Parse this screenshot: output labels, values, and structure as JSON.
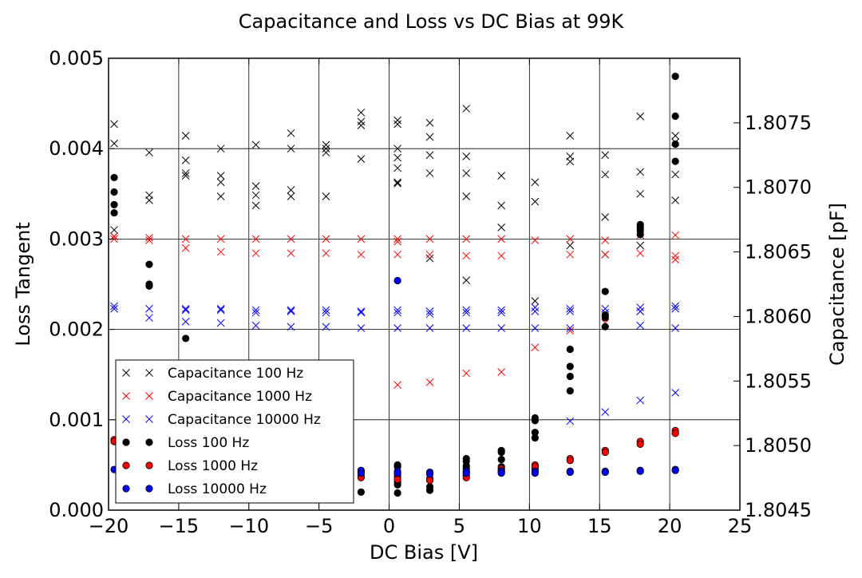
{
  "chart_data": {
    "type": "scatter",
    "title": "Capacitance and Loss vs DC Bias at 99K",
    "xlabel": "DC Bias [V]",
    "ylabel_left": "Loss Tangent",
    "ylabel_right": "Capacitance [pF]",
    "xlim": [
      -20,
      25
    ],
    "ylim_left": [
      0.0,
      0.005
    ],
    "ylim_right": [
      1.8045,
      1.808
    ],
    "x_ticks": [
      "−20",
      "−15",
      "−10",
      "−5",
      "0",
      "5",
      "10",
      "15",
      "20",
      "25"
    ],
    "x_tick_values": [
      -20,
      -15,
      -10,
      -5,
      0,
      5,
      10,
      15,
      20,
      25
    ],
    "y_left_ticks": [
      "0.000",
      "0.001",
      "0.002",
      "0.003",
      "0.004",
      "0.005"
    ],
    "y_left_tick_values": [
      0,
      0.001,
      0.002,
      0.003,
      0.004,
      0.005
    ],
    "y_right_ticks": [
      "1.8045",
      "1.8050",
      "1.8055",
      "1.8060",
      "1.8065",
      "1.8070",
      "1.8075"
    ],
    "y_right_tick_values": [
      1.8045,
      1.805,
      1.8055,
      1.806,
      1.8065,
      1.807,
      1.8075
    ],
    "grid": true,
    "legend_position": "lower-left",
    "legend": [
      {
        "label": "Capacitance 100 Hz",
        "marker": "x",
        "color": "#000000"
      },
      {
        "label": "Capacitance 1000 Hz",
        "marker": "x",
        "color": "#ff0000"
      },
      {
        "label": "Capacitance 10000 Hz",
        "marker": "x",
        "color": "#0000ff"
      },
      {
        "label": "Loss 100 Hz",
        "marker": "o",
        "color": "#000000"
      },
      {
        "label": "Loss 1000 Hz",
        "marker": "o",
        "color": "#ff0000"
      },
      {
        "label": "Loss 10000 Hz",
        "marker": "o",
        "color": "#0000ff"
      }
    ],
    "series": [
      {
        "name": "Capacitance 100 Hz",
        "axis": "right",
        "marker": "x",
        "color": "#000000",
        "points": [
          [
            -19.6,
            1.80749
          ],
          [
            -19.6,
            1.80734
          ],
          [
            -19.6,
            1.80667
          ],
          [
            -19.6,
            1.80662
          ],
          [
            -17.1,
            1.80727
          ],
          [
            -17.1,
            1.80694
          ],
          [
            -17.1,
            1.8069
          ],
          [
            -14.5,
            1.8074
          ],
          [
            -14.5,
            1.80721
          ],
          [
            -14.5,
            1.80711
          ],
          [
            -14.5,
            1.80709
          ],
          [
            -12.0,
            1.8073
          ],
          [
            -12.0,
            1.80709
          ],
          [
            -12.0,
            1.80704
          ],
          [
            -12.0,
            1.80693
          ],
          [
            -9.5,
            1.80733
          ],
          [
            -9.5,
            1.80701
          ],
          [
            -9.5,
            1.80694
          ],
          [
            -9.5,
            1.80686
          ],
          [
            -7.0,
            1.80742
          ],
          [
            -7.0,
            1.8073
          ],
          [
            -7.0,
            1.80698
          ],
          [
            -7.0,
            1.80693
          ],
          [
            -4.5,
            1.80733
          ],
          [
            -4.5,
            1.8073
          ],
          [
            -4.5,
            1.80727
          ],
          [
            -4.5,
            1.80693
          ],
          [
            -2.0,
            1.80758
          ],
          [
            -2.0,
            1.80751
          ],
          [
            -2.0,
            1.80748
          ],
          [
            -2.0,
            1.80722
          ],
          [
            0.6,
            1.80752
          ],
          [
            0.6,
            1.80749
          ],
          [
            0.6,
            1.8073
          ],
          [
            0.6,
            1.80723
          ],
          [
            0.6,
            1.80715
          ],
          [
            0.6,
            1.80704
          ],
          [
            0.6,
            1.80703
          ],
          [
            2.9,
            1.8075
          ],
          [
            2.9,
            1.80739
          ],
          [
            2.9,
            1.80725
          ],
          [
            2.9,
            1.80711
          ],
          [
            2.9,
            1.80645
          ],
          [
            5.5,
            1.80761
          ],
          [
            5.5,
            1.80724
          ],
          [
            5.5,
            1.80711
          ],
          [
            5.5,
            1.80693
          ],
          [
            5.5,
            1.80628
          ],
          [
            8.0,
            1.80709
          ],
          [
            8.0,
            1.80686
          ],
          [
            8.0,
            1.80669
          ],
          [
            10.4,
            1.80704
          ],
          [
            10.4,
            1.80689
          ],
          [
            10.4,
            1.80612
          ],
          [
            12.9,
            1.8074
          ],
          [
            12.9,
            1.80724
          ],
          [
            12.9,
            1.8072
          ],
          [
            12.9,
            1.80655
          ],
          [
            15.4,
            1.80725
          ],
          [
            15.4,
            1.8071
          ],
          [
            15.4,
            1.80677
          ],
          [
            15.4,
            1.80648
          ],
          [
            17.9,
            1.80755
          ],
          [
            17.9,
            1.80712
          ],
          [
            17.9,
            1.80695
          ],
          [
            17.9,
            1.80655
          ],
          [
            20.4,
            1.80735
          ],
          [
            20.4,
            1.8074
          ],
          [
            20.4,
            1.8071
          ],
          [
            20.4,
            1.8069
          ]
        ]
      },
      {
        "name": "Capacitance 1000 Hz",
        "axis": "right",
        "marker": "x",
        "color": "#ff0000",
        "points": [
          [
            -19.6,
            1.80662
          ],
          [
            -19.6,
            1.8066
          ],
          [
            -17.1,
            1.80661
          ],
          [
            -17.1,
            1.80659
          ],
          [
            -14.5,
            1.8066
          ],
          [
            -14.5,
            1.80653
          ],
          [
            -12.0,
            1.8066
          ],
          [
            -12.0,
            1.8065
          ],
          [
            -9.5,
            1.8066
          ],
          [
            -9.5,
            1.80649
          ],
          [
            -7.0,
            1.8066
          ],
          [
            -7.0,
            1.80649
          ],
          [
            -4.5,
            1.8066
          ],
          [
            -4.5,
            1.80649
          ],
          [
            -2.0,
            1.8066
          ],
          [
            -2.0,
            1.80648
          ],
          [
            0.6,
            1.8066
          ],
          [
            0.6,
            1.80658
          ],
          [
            0.6,
            1.80648
          ],
          [
            0.6,
            1.80547
          ],
          [
            2.9,
            1.8066
          ],
          [
            2.9,
            1.80648
          ],
          [
            2.9,
            1.80549
          ],
          [
            5.5,
            1.8066
          ],
          [
            5.5,
            1.80647
          ],
          [
            5.5,
            1.80556
          ],
          [
            8.0,
            1.8066
          ],
          [
            8.0,
            1.80647
          ],
          [
            8.0,
            1.80557
          ],
          [
            10.4,
            1.80659
          ],
          [
            10.4,
            1.80576
          ],
          [
            12.9,
            1.8066
          ],
          [
            12.9,
            1.80648
          ],
          [
            12.9,
            1.80589
          ],
          [
            15.4,
            1.80659
          ],
          [
            15.4,
            1.80648
          ],
          [
            15.4,
            1.80595
          ],
          [
            17.9,
            1.80663
          ],
          [
            17.9,
            1.80649
          ],
          [
            17.9,
            1.80604
          ],
          [
            20.4,
            1.80663
          ],
          [
            20.4,
            1.80647
          ],
          [
            20.4,
            1.80644
          ]
        ]
      },
      {
        "name": "Capacitance 10000 Hz",
        "axis": "right",
        "marker": "x",
        "color": "#0000ff",
        "points": [
          [
            -19.6,
            1.80608
          ],
          [
            -19.6,
            1.80606
          ],
          [
            -17.1,
            1.80606
          ],
          [
            -17.1,
            1.80599
          ],
          [
            -14.5,
            1.80606
          ],
          [
            -14.5,
            1.80605
          ],
          [
            -14.5,
            1.80596
          ],
          [
            -12.0,
            1.80606
          ],
          [
            -12.0,
            1.80605
          ],
          [
            -12.0,
            1.80595
          ],
          [
            -9.5,
            1.80605
          ],
          [
            -9.5,
            1.80603
          ],
          [
            -9.5,
            1.80593
          ],
          [
            -7.0,
            1.80605
          ],
          [
            -7.0,
            1.80604
          ],
          [
            -7.0,
            1.80592
          ],
          [
            -4.5,
            1.80605
          ],
          [
            -4.5,
            1.80603
          ],
          [
            -4.5,
            1.80592
          ],
          [
            -2.0,
            1.80604
          ],
          [
            -2.0,
            1.80603
          ],
          [
            -2.0,
            1.80591
          ],
          [
            0.6,
            1.80605
          ],
          [
            0.6,
            1.80603
          ],
          [
            0.6,
            1.80591
          ],
          [
            2.9,
            1.80604
          ],
          [
            2.9,
            1.80602
          ],
          [
            2.9,
            1.80591
          ],
          [
            5.5,
            1.80605
          ],
          [
            5.5,
            1.80603
          ],
          [
            5.5,
            1.80591
          ],
          [
            8.0,
            1.80605
          ],
          [
            8.0,
            1.80603
          ],
          [
            8.0,
            1.80591
          ],
          [
            10.4,
            1.80607
          ],
          [
            10.4,
            1.80604
          ],
          [
            10.4,
            1.80591
          ],
          [
            12.9,
            1.80606
          ],
          [
            12.9,
            1.80604
          ],
          [
            12.9,
            1.80591
          ],
          [
            12.9,
            1.80519
          ],
          [
            15.4,
            1.80606
          ],
          [
            15.4,
            1.80603
          ],
          [
            15.4,
            1.80526
          ],
          [
            17.9,
            1.80607
          ],
          [
            17.9,
            1.80604
          ],
          [
            17.9,
            1.80593
          ],
          [
            17.9,
            1.80535
          ],
          [
            20.4,
            1.80608
          ],
          [
            20.4,
            1.80606
          ],
          [
            20.4,
            1.80591
          ],
          [
            20.4,
            1.80541
          ]
        ]
      },
      {
        "name": "Loss 100 Hz",
        "axis": "left",
        "marker": "o",
        "color": "#000000",
        "points": [
          [
            -19.6,
            0.00368
          ],
          [
            -19.6,
            0.00352
          ],
          [
            -19.6,
            0.00338
          ],
          [
            -19.6,
            0.00329
          ],
          [
            -17.1,
            0.00272
          ],
          [
            -17.1,
            0.0025
          ],
          [
            -17.1,
            0.00248
          ],
          [
            -14.5,
            0.0019
          ],
          [
            -2.0,
            0.00043
          ],
          [
            -2.0,
            0.0002
          ],
          [
            0.6,
            0.0005
          ],
          [
            0.6,
            0.00048
          ],
          [
            0.6,
            0.0004
          ],
          [
            0.6,
            0.00031
          ],
          [
            0.6,
            0.00028
          ],
          [
            0.6,
            0.00019
          ],
          [
            2.9,
            0.0004
          ],
          [
            2.9,
            0.00034
          ],
          [
            2.9,
            0.00026
          ],
          [
            2.9,
            0.00022
          ],
          [
            5.5,
            0.00057
          ],
          [
            5.5,
            0.00054
          ],
          [
            5.5,
            0.00049
          ],
          [
            5.5,
            0.00046
          ],
          [
            5.5,
            0.00042
          ],
          [
            8.0,
            0.00066
          ],
          [
            8.0,
            0.00064
          ],
          [
            8.0,
            0.00056
          ],
          [
            8.0,
            0.00048
          ],
          [
            8.0,
            0.00042
          ],
          [
            10.4,
            0.00102
          ],
          [
            10.4,
            0.00099
          ],
          [
            10.4,
            0.00086
          ],
          [
            10.4,
            0.0008
          ],
          [
            10.4,
            0.00046
          ],
          [
            12.9,
            0.00178
          ],
          [
            12.9,
            0.00159
          ],
          [
            12.9,
            0.00148
          ],
          [
            12.9,
            0.00132
          ],
          [
            15.4,
            0.00242
          ],
          [
            15.4,
            0.00216
          ],
          [
            15.4,
            0.00213
          ],
          [
            15.4,
            0.00203
          ],
          [
            17.9,
            0.00316
          ],
          [
            17.9,
            0.00313
          ],
          [
            17.9,
            0.0031
          ],
          [
            17.9,
            0.00305
          ],
          [
            20.4,
            0.0048
          ],
          [
            20.4,
            0.00436
          ],
          [
            20.4,
            0.00405
          ],
          [
            20.4,
            0.00386
          ]
        ]
      },
      {
        "name": "Loss 1000 Hz",
        "axis": "left",
        "marker": "o",
        "color": "#ff0000",
        "points": [
          [
            -19.6,
            0.00078
          ],
          [
            -19.6,
            0.00076
          ],
          [
            -2.0,
            0.00038
          ],
          [
            -2.0,
            0.00036
          ],
          [
            0.6,
            0.00037
          ],
          [
            0.6,
            0.00034
          ],
          [
            2.9,
            0.00035
          ],
          [
            2.9,
            0.00033
          ],
          [
            5.5,
            0.00039
          ],
          [
            5.5,
            0.00036
          ],
          [
            8.0,
            0.00046
          ],
          [
            8.0,
            0.00044
          ],
          [
            10.4,
            0.0005
          ],
          [
            10.4,
            0.00048
          ],
          [
            12.9,
            0.00057
          ],
          [
            12.9,
            0.00055
          ],
          [
            15.4,
            0.00066
          ],
          [
            15.4,
            0.00064
          ],
          [
            17.9,
            0.00076
          ],
          [
            17.9,
            0.00073
          ],
          [
            20.4,
            0.00088
          ],
          [
            20.4,
            0.00085
          ]
        ]
      },
      {
        "name": "Loss 10000 Hz",
        "axis": "left",
        "marker": "o",
        "color": "#0000ff",
        "points": [
          [
            -19.6,
            0.00045
          ],
          [
            -2.0,
            0.00044
          ],
          [
            -2.0,
            0.00041
          ],
          [
            0.6,
            0.00254
          ],
          [
            0.6,
            0.00043
          ],
          [
            0.6,
            0.00041
          ],
          [
            2.9,
            0.00042
          ],
          [
            2.9,
            0.0004
          ],
          [
            5.5,
            0.00043
          ],
          [
            5.5,
            0.00041
          ],
          [
            8.0,
            0.00043
          ],
          [
            8.0,
            0.00041
          ],
          [
            10.4,
            0.00043
          ],
          [
            10.4,
            0.00041
          ],
          [
            12.9,
            0.00043
          ],
          [
            12.9,
            0.00042
          ],
          [
            15.4,
            0.00043
          ],
          [
            15.4,
            0.00042
          ],
          [
            17.9,
            0.00044
          ],
          [
            17.9,
            0.00043
          ],
          [
            20.4,
            0.00045
          ],
          [
            20.4,
            0.00044
          ]
        ]
      }
    ]
  }
}
